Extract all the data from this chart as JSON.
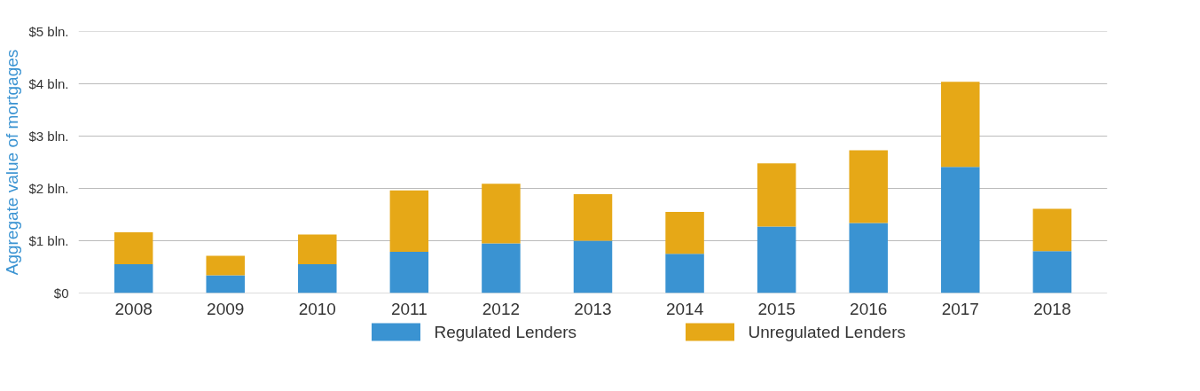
{
  "chart_data": {
    "type": "bar",
    "stacked": true,
    "ylabel": "Aggregate value of mortgages",
    "categories": [
      "2008",
      "2009",
      "2010",
      "2011",
      "2012",
      "2013",
      "2014",
      "2015",
      "2016",
      "2017",
      "2018"
    ],
    "series": [
      {
        "name": "Regulated Lenders",
        "color": "#3a93d2",
        "values": [
          0.55,
          0.34,
          0.55,
          0.79,
          0.95,
          1.0,
          0.75,
          1.27,
          1.34,
          2.41,
          0.8
        ]
      },
      {
        "name": "Unregulated Lenders",
        "color": "#e6a817",
        "values": [
          0.61,
          0.37,
          0.57,
          1.17,
          1.14,
          0.89,
          0.8,
          1.21,
          1.39,
          1.63,
          0.81
        ]
      }
    ],
    "ylim": [
      0,
      5
    ],
    "yticks": [
      {
        "value": 0,
        "label": "$0"
      },
      {
        "value": 1,
        "label": "$1 bln."
      },
      {
        "value": 2,
        "label": "$2 bln."
      },
      {
        "value": 3,
        "label": "$3 bln."
      },
      {
        "value": 4,
        "label": "$4 bln."
      },
      {
        "value": 5,
        "label": "$5 bln."
      }
    ],
    "grid": "y",
    "legend": "bottom"
  }
}
